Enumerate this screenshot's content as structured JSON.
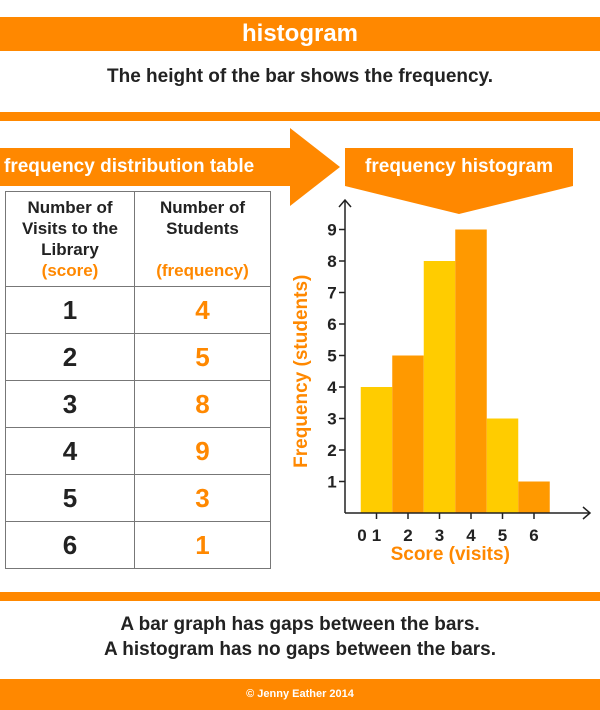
{
  "header": {
    "title": "histogram",
    "subtitle": "The height of the bar shows the frequency."
  },
  "banners": {
    "table_label": "frequency distribution table",
    "histogram_label": "frequency histogram"
  },
  "table": {
    "col1_header_lines": [
      "Number of",
      "Visits to the",
      "Library"
    ],
    "col1_header_sub": "(score)",
    "col2_header_lines": [
      "Number of",
      "Students"
    ],
    "col2_header_sub": "(frequency)",
    "rows": [
      {
        "score": "1",
        "frequency": "4"
      },
      {
        "score": "2",
        "frequency": "5"
      },
      {
        "score": "3",
        "frequency": "8"
      },
      {
        "score": "4",
        "frequency": "9"
      },
      {
        "score": "5",
        "frequency": "3"
      },
      {
        "score": "6",
        "frequency": "1"
      }
    ]
  },
  "colors": {
    "accent": "#ff8800",
    "bar_yellow": "#ffcc00",
    "bar_orange": "#ff9900",
    "text_dark": "#222222"
  },
  "chart_data": {
    "type": "bar",
    "categories": [
      "1",
      "2",
      "3",
      "4",
      "5",
      "6"
    ],
    "values": [
      4,
      5,
      8,
      9,
      3,
      1
    ],
    "bar_colors": [
      "#ffcc00",
      "#ff9900",
      "#ffcc00",
      "#ff9900",
      "#ffcc00",
      "#ff9900"
    ],
    "xlabel": "Score (visits)",
    "ylabel": "Frequency (students)",
    "x_ticks": [
      "0",
      "1",
      "2",
      "3",
      "4",
      "5",
      "6"
    ],
    "y_ticks": [
      "1",
      "2",
      "3",
      "4",
      "5",
      "6",
      "7",
      "8",
      "9"
    ],
    "ylim": [
      0,
      9
    ],
    "xlim": [
      0,
      6
    ],
    "gaps_between_bars": false
  },
  "footer_text": {
    "line1": "A bar graph has gaps between the bars.",
    "line2": "A histogram has no gaps between the bars.",
    "copyright": "© Jenny Eather 2014"
  }
}
